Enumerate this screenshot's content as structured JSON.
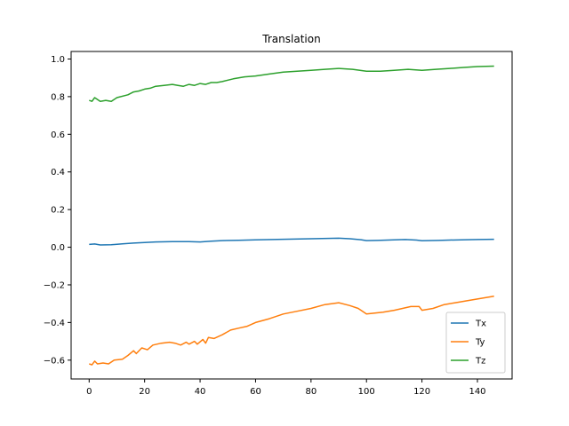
{
  "chart_data": {
    "type": "line",
    "title": "Translation",
    "xlabel": "",
    "ylabel": "",
    "xlim": [
      -6.5,
      152.5
    ],
    "ylim": [
      -0.7,
      1.04
    ],
    "xticks": [
      0,
      20,
      40,
      60,
      80,
      100,
      120,
      140
    ],
    "yticks": [
      -0.6,
      -0.4,
      -0.2,
      0.0,
      0.2,
      0.4,
      0.6,
      0.8,
      1.0
    ],
    "xtick_labels": [
      "0",
      "20",
      "40",
      "60",
      "80",
      "100",
      "120",
      "140"
    ],
    "ytick_labels": [
      "−0.6",
      "−0.4",
      "−0.2",
      "0.0",
      "0.2",
      "0.4",
      "0.6",
      "0.8",
      "1.0"
    ],
    "grid": false,
    "legend_position": "lower-right",
    "series": [
      {
        "name": "Tx",
        "color": "#1f77b4",
        "points": [
          [
            0,
            0.015
          ],
          [
            2,
            0.017
          ],
          [
            4,
            0.012
          ],
          [
            8,
            0.013
          ],
          [
            12,
            0.018
          ],
          [
            16,
            0.022
          ],
          [
            20,
            0.025
          ],
          [
            24,
            0.028
          ],
          [
            30,
            0.03
          ],
          [
            36,
            0.03
          ],
          [
            40,
            0.028
          ],
          [
            44,
            0.032
          ],
          [
            48,
            0.035
          ],
          [
            54,
            0.037
          ],
          [
            60,
            0.039
          ],
          [
            70,
            0.042
          ],
          [
            80,
            0.045
          ],
          [
            86,
            0.047
          ],
          [
            90,
            0.048
          ],
          [
            94,
            0.045
          ],
          [
            98,
            0.04
          ],
          [
            100,
            0.035
          ],
          [
            104,
            0.036
          ],
          [
            110,
            0.039
          ],
          [
            114,
            0.041
          ],
          [
            118,
            0.038
          ],
          [
            120,
            0.034
          ],
          [
            126,
            0.036
          ],
          [
            130,
            0.038
          ],
          [
            136,
            0.04
          ],
          [
            140,
            0.041
          ],
          [
            146,
            0.042
          ]
        ]
      },
      {
        "name": "Ty",
        "color": "#ff7f0e",
        "points": [
          [
            0,
            -0.62
          ],
          [
            1,
            -0.625
          ],
          [
            2,
            -0.605
          ],
          [
            3,
            -0.62
          ],
          [
            5,
            -0.615
          ],
          [
            7,
            -0.62
          ],
          [
            9,
            -0.6
          ],
          [
            12,
            -0.595
          ],
          [
            14,
            -0.575
          ],
          [
            16,
            -0.55
          ],
          [
            17,
            -0.565
          ],
          [
            19,
            -0.535
          ],
          [
            21,
            -0.545
          ],
          [
            23,
            -0.52
          ],
          [
            26,
            -0.51
          ],
          [
            29,
            -0.505
          ],
          [
            31,
            -0.51
          ],
          [
            33,
            -0.52
          ],
          [
            35,
            -0.505
          ],
          [
            36,
            -0.515
          ],
          [
            38,
            -0.5
          ],
          [
            39,
            -0.515
          ],
          [
            41,
            -0.49
          ],
          [
            42,
            -0.51
          ],
          [
            43,
            -0.48
          ],
          [
            45,
            -0.485
          ],
          [
            48,
            -0.465
          ],
          [
            51,
            -0.44
          ],
          [
            54,
            -0.43
          ],
          [
            57,
            -0.42
          ],
          [
            60,
            -0.4
          ],
          [
            65,
            -0.38
          ],
          [
            70,
            -0.355
          ],
          [
            75,
            -0.34
          ],
          [
            80,
            -0.325
          ],
          [
            85,
            -0.305
          ],
          [
            90,
            -0.295
          ],
          [
            94,
            -0.31
          ],
          [
            97,
            -0.325
          ],
          [
            100,
            -0.355
          ],
          [
            103,
            -0.35
          ],
          [
            106,
            -0.345
          ],
          [
            110,
            -0.335
          ],
          [
            113,
            -0.325
          ],
          [
            116,
            -0.315
          ],
          [
            119,
            -0.315
          ],
          [
            120,
            -0.335
          ],
          [
            124,
            -0.325
          ],
          [
            128,
            -0.305
          ],
          [
            132,
            -0.295
          ],
          [
            136,
            -0.285
          ],
          [
            140,
            -0.275
          ],
          [
            146,
            -0.26
          ]
        ]
      },
      {
        "name": "Tz",
        "color": "#2ca02c",
        "points": [
          [
            0,
            0.78
          ],
          [
            1,
            0.775
          ],
          [
            2,
            0.795
          ],
          [
            4,
            0.775
          ],
          [
            6,
            0.78
          ],
          [
            8,
            0.775
          ],
          [
            10,
            0.795
          ],
          [
            14,
            0.81
          ],
          [
            16,
            0.825
          ],
          [
            18,
            0.83
          ],
          [
            20,
            0.84
          ],
          [
            22,
            0.845
          ],
          [
            24,
            0.855
          ],
          [
            27,
            0.86
          ],
          [
            30,
            0.865
          ],
          [
            32,
            0.86
          ],
          [
            34,
            0.855
          ],
          [
            36,
            0.865
          ],
          [
            38,
            0.86
          ],
          [
            40,
            0.87
          ],
          [
            42,
            0.865
          ],
          [
            44,
            0.875
          ],
          [
            46,
            0.875
          ],
          [
            48,
            0.88
          ],
          [
            52,
            0.895
          ],
          [
            56,
            0.905
          ],
          [
            60,
            0.91
          ],
          [
            65,
            0.92
          ],
          [
            70,
            0.93
          ],
          [
            75,
            0.935
          ],
          [
            80,
            0.94
          ],
          [
            85,
            0.945
          ],
          [
            90,
            0.95
          ],
          [
            95,
            0.945
          ],
          [
            100,
            0.935
          ],
          [
            105,
            0.935
          ],
          [
            110,
            0.94
          ],
          [
            115,
            0.945
          ],
          [
            120,
            0.94
          ],
          [
            125,
            0.945
          ],
          [
            130,
            0.95
          ],
          [
            135,
            0.955
          ],
          [
            140,
            0.96
          ],
          [
            146,
            0.962
          ]
        ]
      }
    ]
  }
}
